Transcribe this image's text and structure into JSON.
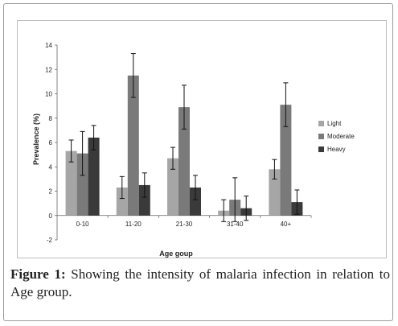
{
  "chart_data": {
    "type": "bar",
    "title": "",
    "xlabel": "Age goup",
    "ylabel": "Prevalence (%)",
    "ylim": [
      -2,
      14
    ],
    "yticks": [
      -2,
      0,
      2,
      4,
      6,
      8,
      10,
      12,
      14
    ],
    "categories": [
      "0-10",
      "11-20",
      "21-30",
      "31-40",
      "40+"
    ],
    "series": [
      {
        "name": "Light",
        "color": "#a6a6a6",
        "values": [
          5.3,
          2.3,
          4.7,
          0.4,
          3.8
        ],
        "errors": [
          0.9,
          0.9,
          0.9,
          0.9,
          0.8
        ]
      },
      {
        "name": "Moderate",
        "color": "#7a7a7a",
        "values": [
          5.1,
          11.5,
          8.9,
          1.3,
          9.1
        ],
        "errors": [
          1.8,
          1.8,
          1.8,
          1.8,
          1.8
        ]
      },
      {
        "name": "Heavy",
        "color": "#3a3a3a",
        "values": [
          6.4,
          2.5,
          2.3,
          0.6,
          1.1
        ],
        "errors": [
          1.0,
          1.0,
          1.0,
          1.0,
          1.0
        ]
      }
    ],
    "legend_position": "right",
    "grid": false
  },
  "caption": {
    "label": "Figure 1:",
    "text": " Showing the intensity of malaria infection in relation to Age group."
  }
}
